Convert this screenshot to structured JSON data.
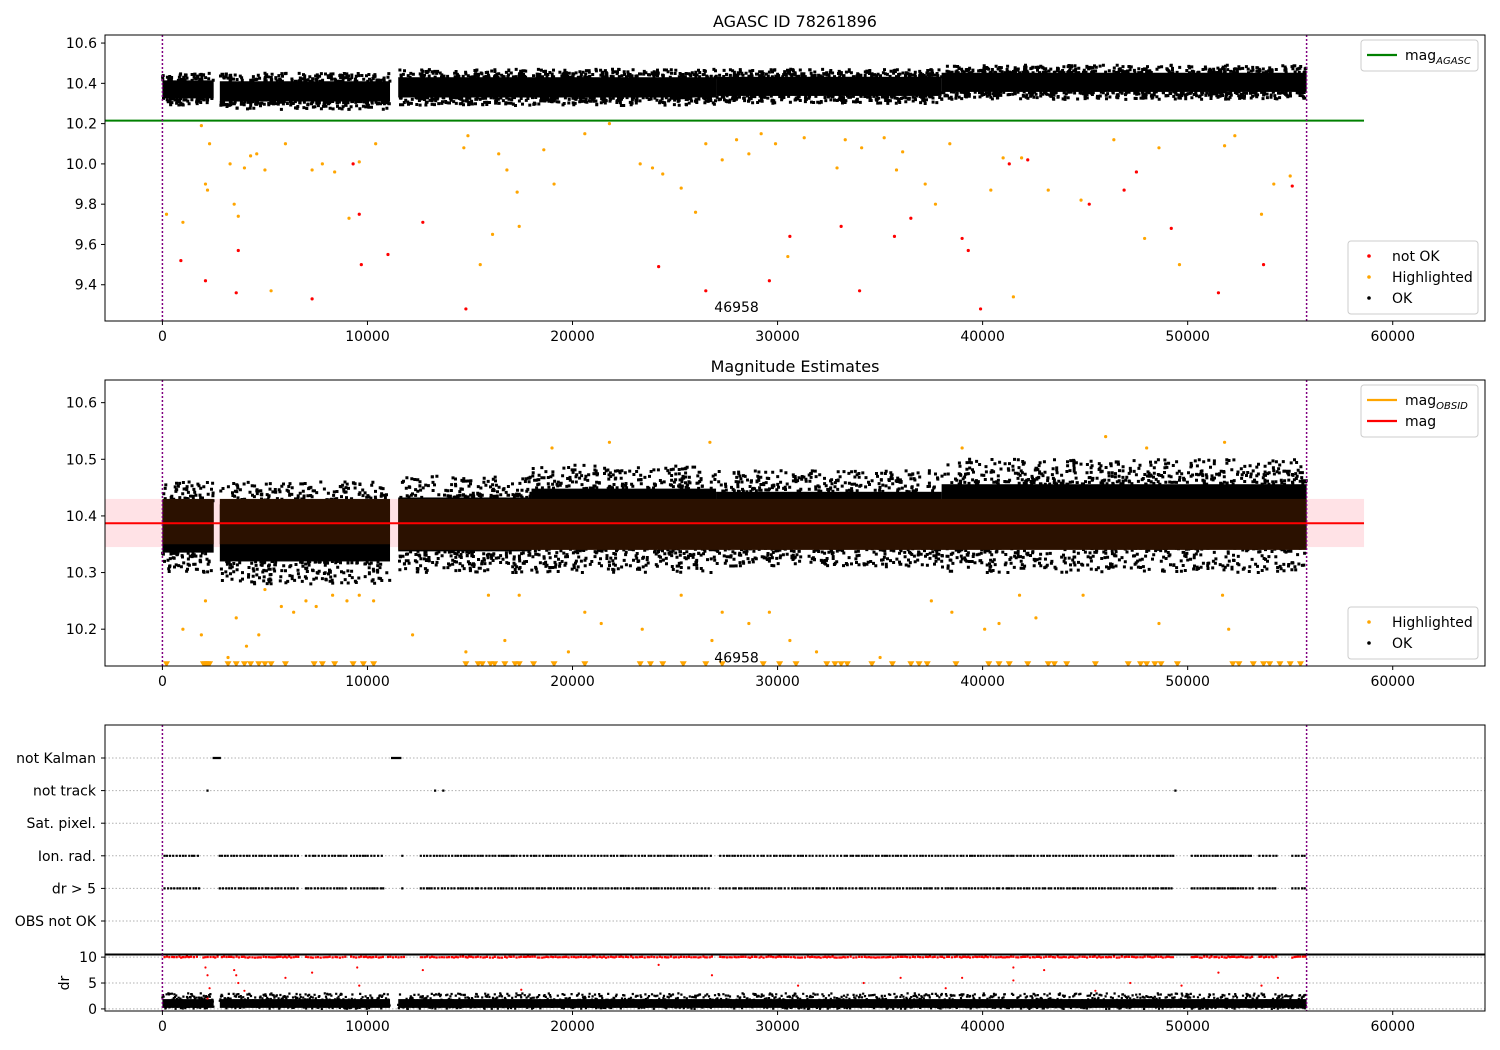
{
  "chart_data": [
    {
      "type": "scatter",
      "title": "AGASC ID 78261896",
      "xlabel": "",
      "ylabel": "",
      "xlim": [
        -2800,
        64500
      ],
      "ylim": [
        9.22,
        10.64
      ],
      "xticks": [
        0,
        10000,
        20000,
        30000,
        40000,
        50000,
        60000
      ],
      "xtick_labels": [
        "0",
        "10000",
        "20000",
        "30000",
        "40000",
        "50000",
        "60000"
      ],
      "yticks": [
        9.4,
        9.6,
        9.8,
        10.0,
        10.2,
        10.4,
        10.6
      ],
      "ytick_labels": [
        "9.4",
        "9.6",
        "9.8",
        "10.0",
        "10.2",
        "10.4",
        "10.6"
      ],
      "vlines": [
        0,
        55800
      ],
      "annotation": {
        "text": "46958",
        "x": 28000,
        "y": 9.29
      },
      "legends": [
        {
          "placement": "top-right",
          "entries": [
            {
              "label": "mag",
              "sub": "AGASC",
              "color": "#008000",
              "marker": "line"
            }
          ]
        },
        {
          "placement": "bottom-right",
          "entries": [
            {
              "label": "not OK",
              "color": "#ff0000",
              "marker": "dot"
            },
            {
              "label": "Highlighted",
              "color": "#ffa500",
              "marker": "dot"
            },
            {
              "label": "OK",
              "color": "#000000",
              "marker": "dot"
            }
          ]
        }
      ],
      "series": [
        {
          "name": "mag",
          "kind": "hline",
          "y": 10.215,
          "x": [
            -2800,
            58600
          ],
          "color": "#008000"
        },
        {
          "name": "OK",
          "kind": "band",
          "color": "#000000",
          "segments": [
            [
              0,
              2500,
              10.29,
              10.45
            ],
            [
              2800,
              11100,
              10.27,
              10.45
            ],
            [
              11500,
              27000,
              10.29,
              10.47
            ],
            [
              27000,
              38000,
              10.3,
              10.47
            ],
            [
              38000,
              55800,
              10.32,
              10.49
            ]
          ]
        },
        {
          "name": "Highlighted",
          "kind": "points",
          "color": "#ffa500",
          "x": [
            200,
            1000,
            1900,
            2100,
            2200,
            2300,
            3300,
            3500,
            3700,
            4000,
            4300,
            4600,
            5000,
            5300,
            6000,
            7300,
            7800,
            8400,
            9100,
            9600,
            10400,
            14700,
            14900,
            15500,
            16100,
            16400,
            16800,
            17300,
            17400,
            18600,
            19100,
            20600,
            21800,
            23300,
            23900,
            24400,
            25300,
            26000,
            26500,
            27300,
            28000,
            28600,
            29200,
            29900,
            30500,
            31300,
            32900,
            33300,
            34100,
            35200,
            35800,
            36100,
            37200,
            37700,
            38400,
            40400,
            41000,
            41500,
            41900,
            43200,
            44800,
            46400,
            47900,
            48600,
            49600,
            51800,
            52300,
            53600,
            54200,
            55000
          ],
          "y": [
            9.75,
            9.71,
            10.19,
            9.9,
            9.87,
            10.1,
            10.0,
            9.8,
            9.74,
            9.98,
            10.04,
            10.05,
            9.97,
            9.37,
            10.1,
            9.97,
            10.0,
            9.96,
            9.73,
            10.01,
            10.1,
            10.08,
            10.14,
            9.5,
            9.65,
            10.05,
            9.97,
            9.86,
            9.69,
            10.07,
            9.9,
            10.15,
            10.2,
            10.0,
            9.98,
            9.95,
            9.88,
            9.76,
            10.1,
            10.02,
            10.12,
            10.05,
            10.15,
            10.1,
            9.54,
            10.13,
            9.98,
            10.12,
            10.08,
            10.13,
            9.97,
            10.06,
            9.9,
            9.8,
            10.1,
            9.87,
            10.03,
            9.34,
            10.03,
            9.87,
            9.82,
            10.12,
            9.63,
            10.08,
            9.5,
            10.09,
            10.14,
            9.75,
            9.9,
            9.94
          ]
        },
        {
          "name": "not OK",
          "kind": "points",
          "color": "#ff0000",
          "x": [
            900,
            2100,
            3600,
            3700,
            7300,
            9300,
            9600,
            9700,
            11000,
            12700,
            14800,
            24200,
            26500,
            29600,
            30600,
            33100,
            34000,
            35700,
            36500,
            39000,
            39300,
            39900,
            41300,
            42200,
            45200,
            46900,
            47500,
            49200,
            51500,
            53700,
            55100
          ],
          "y": [
            9.52,
            9.42,
            9.36,
            9.57,
            9.33,
            10.0,
            9.75,
            9.5,
            9.55,
            9.71,
            9.28,
            9.49,
            9.37,
            9.42,
            9.64,
            9.69,
            9.37,
            9.64,
            9.73,
            9.63,
            9.57,
            9.28,
            10.0,
            10.02,
            9.8,
            9.87,
            9.96,
            9.68,
            9.36,
            9.5,
            9.89
          ]
        }
      ]
    },
    {
      "type": "scatter",
      "title": "Magnitude Estimates",
      "xlabel": "",
      "ylabel": "",
      "xlim": [
        -2800,
        64500
      ],
      "ylim": [
        10.135,
        10.64
      ],
      "xticks": [
        0,
        10000,
        20000,
        30000,
        40000,
        50000,
        60000
      ],
      "xtick_labels": [
        "0",
        "10000",
        "20000",
        "30000",
        "40000",
        "50000",
        "60000"
      ],
      "yticks": [
        10.2,
        10.3,
        10.4,
        10.5,
        10.6
      ],
      "ytick_labels": [
        "10.2",
        "10.3",
        "10.4",
        "10.5",
        "10.6"
      ],
      "vlines": [
        0,
        55800
      ],
      "annotation": {
        "text": "46958",
        "x": 28000,
        "y": 10.15
      },
      "legends": [
        {
          "placement": "top-right",
          "entries": [
            {
              "label": "mag",
              "sub": "OBSID",
              "color": "#ffa500",
              "marker": "line"
            },
            {
              "label": "mag",
              "sub": "",
              "color": "#ff0000",
              "marker": "line"
            }
          ]
        },
        {
          "placement": "bottom-right",
          "entries": [
            {
              "label": "Highlighted",
              "color": "#ffa500",
              "marker": "dot"
            },
            {
              "label": "OK",
              "color": "#000000",
              "marker": "dot"
            }
          ]
        }
      ],
      "series": [
        {
          "name": "mag",
          "kind": "hline",
          "y": 10.387,
          "x": [
            -2800,
            58600
          ],
          "color": "#ff0000",
          "band": [
            10.345,
            10.43
          ]
        },
        {
          "name": "OK",
          "kind": "band",
          "color": "#000000",
          "segments": [
            [
              0,
              2500,
              10.3,
              10.46
            ],
            [
              2800,
              11100,
              10.28,
              10.46
            ],
            [
              11500,
              18000,
              10.3,
              10.47
            ],
            [
              18000,
              27000,
              10.3,
              10.49
            ],
            [
              27000,
              38000,
              10.31,
              10.48
            ],
            [
              38000,
              55800,
              10.3,
              10.5
            ]
          ]
        },
        {
          "name": "mag_OBSID",
          "kind": "band",
          "color": "#2b1100",
          "segments": [
            [
              0,
              2500,
              10.35,
              10.43
            ],
            [
              2800,
              11100,
              10.35,
              10.43
            ],
            [
              11500,
              55800,
              10.34,
              10.43
            ]
          ]
        },
        {
          "name": "Highlighted",
          "kind": "points",
          "color": "#ffa500",
          "x": [
            1000,
            1900,
            2100,
            3200,
            3600,
            4100,
            4700,
            5000,
            5800,
            6400,
            7000,
            7500,
            8300,
            9000,
            9600,
            10300,
            12200,
            14800,
            15900,
            16700,
            17400,
            19800,
            20600,
            21400,
            23400,
            25300,
            26800,
            27300,
            28600,
            29600,
            30600,
            31900,
            35000,
            37500,
            38500,
            40100,
            40800,
            41800,
            42600,
            44900,
            48600,
            51700,
            52000,
            19000,
            21800,
            26700,
            39000,
            46000,
            48000,
            51800
          ],
          "y": [
            10.2,
            10.19,
            10.25,
            10.15,
            10.22,
            10.17,
            10.19,
            10.27,
            10.24,
            10.23,
            10.25,
            10.24,
            10.26,
            10.25,
            10.26,
            10.25,
            10.19,
            10.16,
            10.26,
            10.18,
            10.26,
            10.16,
            10.23,
            10.21,
            10.2,
            10.26,
            10.18,
            10.23,
            10.21,
            10.23,
            10.18,
            10.16,
            10.15,
            10.25,
            10.23,
            10.2,
            10.21,
            10.26,
            10.22,
            10.26,
            10.21,
            10.26,
            10.2,
            10.52,
            10.53,
            10.53,
            10.52,
            10.54,
            10.52,
            10.53
          ]
        },
        {
          "name": "Highlighted (below range)",
          "kind": "triangles",
          "color": "#ffa500",
          "y": 10.138,
          "x": [
            200,
            2000,
            2100,
            2200,
            2300,
            3200,
            3600,
            4000,
            4300,
            4700,
            5000,
            5300,
            6000,
            7400,
            7800,
            8400,
            9300,
            9800,
            10300,
            14800,
            15400,
            15600,
            16000,
            16200,
            16700,
            17200,
            17400,
            18100,
            19100,
            20600,
            23300,
            23800,
            24400,
            25400,
            26500,
            27300,
            29300,
            30100,
            30900,
            32400,
            32800,
            33100,
            33400,
            34600,
            35600,
            36500,
            36900,
            37300,
            38700,
            40300,
            40800,
            41300,
            42200,
            43200,
            43500,
            44100,
            45500,
            47100,
            47700,
            48000,
            48400,
            48700,
            49500,
            52200,
            52500,
            53200,
            53700,
            54000,
            54500,
            55000,
            55500
          ]
        }
      ]
    },
    {
      "type": "scatter",
      "title": "",
      "xlabel": "",
      "ylabel": "",
      "xlim": [
        -2800,
        64500
      ],
      "ytick_labels": [
        "not Kalman",
        "not track",
        "Sat. pixel.",
        "Ion. rad.",
        "dr > 5",
        "OBS not OK"
      ],
      "vlines": [
        0,
        55800
      ],
      "flags": [
        {
          "name": "not Kalman",
          "x": [
            2500,
            2600,
            2700,
            2800,
            11200,
            11300,
            11400,
            11500,
            11600
          ]
        },
        {
          "name": "not track",
          "x": [
            2200,
            13300,
            13700,
            49400
          ]
        },
        {
          "name": "Sat. pixel.",
          "x": []
        },
        {
          "name": "Ion. rad.",
          "segments": [
            [
              100,
              1800
            ],
            [
              2800,
              6700
            ],
            [
              7000,
              9000
            ],
            [
              9200,
              10800
            ],
            [
              11700,
              11800
            ],
            [
              12600,
              26800
            ],
            [
              27200,
              49300
            ],
            [
              50200,
              53200
            ],
            [
              53500,
              54400
            ],
            [
              55100,
              55800
            ]
          ]
        },
        {
          "name": "dr > 5",
          "segments": [
            [
              100,
              1800
            ],
            [
              2800,
              6700
            ],
            [
              7000,
              9000
            ],
            [
              9200,
              10800
            ],
            [
              11700,
              11800
            ],
            [
              12600,
              26800
            ],
            [
              27200,
              49300
            ],
            [
              50200,
              53200
            ],
            [
              53500,
              54400
            ],
            [
              55100,
              55800
            ]
          ]
        },
        {
          "name": "OBS not OK",
          "x": []
        }
      ]
    },
    {
      "type": "scatter",
      "title": "",
      "xlabel": "",
      "ylabel": "dr",
      "xlim": [
        -2800,
        64500
      ],
      "ylim": [
        -0.4,
        10.6
      ],
      "xticks": [
        0,
        10000,
        20000,
        30000,
        40000,
        50000,
        60000
      ],
      "xtick_labels": [
        "0",
        "10000",
        "20000",
        "30000",
        "40000",
        "50000",
        "60000"
      ],
      "yticks": [
        0,
        5,
        10
      ],
      "ytick_labels": [
        "0",
        "5",
        "10"
      ],
      "vlines": [
        0,
        55800
      ],
      "series": [
        {
          "name": "OK",
          "kind": "band",
          "color": "#000000",
          "segments": [
            [
              0,
              2500,
              0,
              3.0
            ],
            [
              2800,
              11100,
              0,
              3.0
            ],
            [
              11500,
              55800,
              0,
              3.0
            ]
          ]
        },
        {
          "name": "dr > 10 (clipped)",
          "kind": "rowpoints",
          "color": "#ff0000",
          "y": 10,
          "segments": [
            [
              100,
              1800
            ],
            [
              2000,
              2800
            ],
            [
              2900,
              6700
            ],
            [
              7000,
              9000
            ],
            [
              9200,
              10800
            ],
            [
              11000,
              11800
            ],
            [
              12600,
              26800
            ],
            [
              27200,
              49300
            ],
            [
              50200,
              53200
            ],
            [
              53500,
              54400
            ],
            [
              55100,
              55800
            ]
          ]
        },
        {
          "name": "not OK",
          "kind": "points",
          "color": "#ff0000",
          "x": [
            2100,
            2200,
            2300,
            3500,
            3700,
            4000,
            6000,
            7300,
            9500,
            12700,
            17500,
            24200,
            26800,
            31000,
            34200,
            36000,
            38200,
            39000,
            41500,
            43000,
            45500,
            47200,
            49700,
            51500,
            53600,
            54400,
            2200,
            3600,
            9600,
            41500
          ],
          "y": [
            8.0,
            6.5,
            4.0,
            7.5,
            5.0,
            3.5,
            6.0,
            7.0,
            8.0,
            7.5,
            3.7,
            8.5,
            6.5,
            4.5,
            5.0,
            6.0,
            4.0,
            6.0,
            5.5,
            7.5,
            3.5,
            5.0,
            4.5,
            7.0,
            4.5,
            6.0,
            2.0,
            6.5,
            4.5,
            8.0
          ]
        }
      ]
    }
  ]
}
